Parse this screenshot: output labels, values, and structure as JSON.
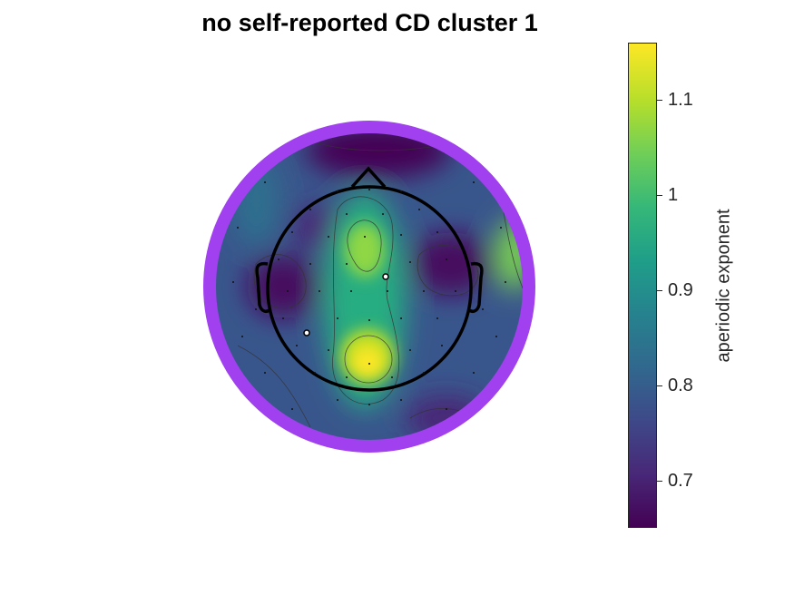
{
  "title": "no self-reported CD cluster 1",
  "colorbar": {
    "label": "aperiodic exponent",
    "min": 0.65,
    "max": 1.16,
    "colormap": "viridis",
    "ticks": [
      "0.7",
      "0.8",
      "0.9",
      "1",
      "1.1"
    ]
  },
  "colors": {
    "outer_ring": "#a040ee",
    "head_outline": "#000000"
  },
  "topoplot": {
    "highlighted_electrodes": 2
  }
}
